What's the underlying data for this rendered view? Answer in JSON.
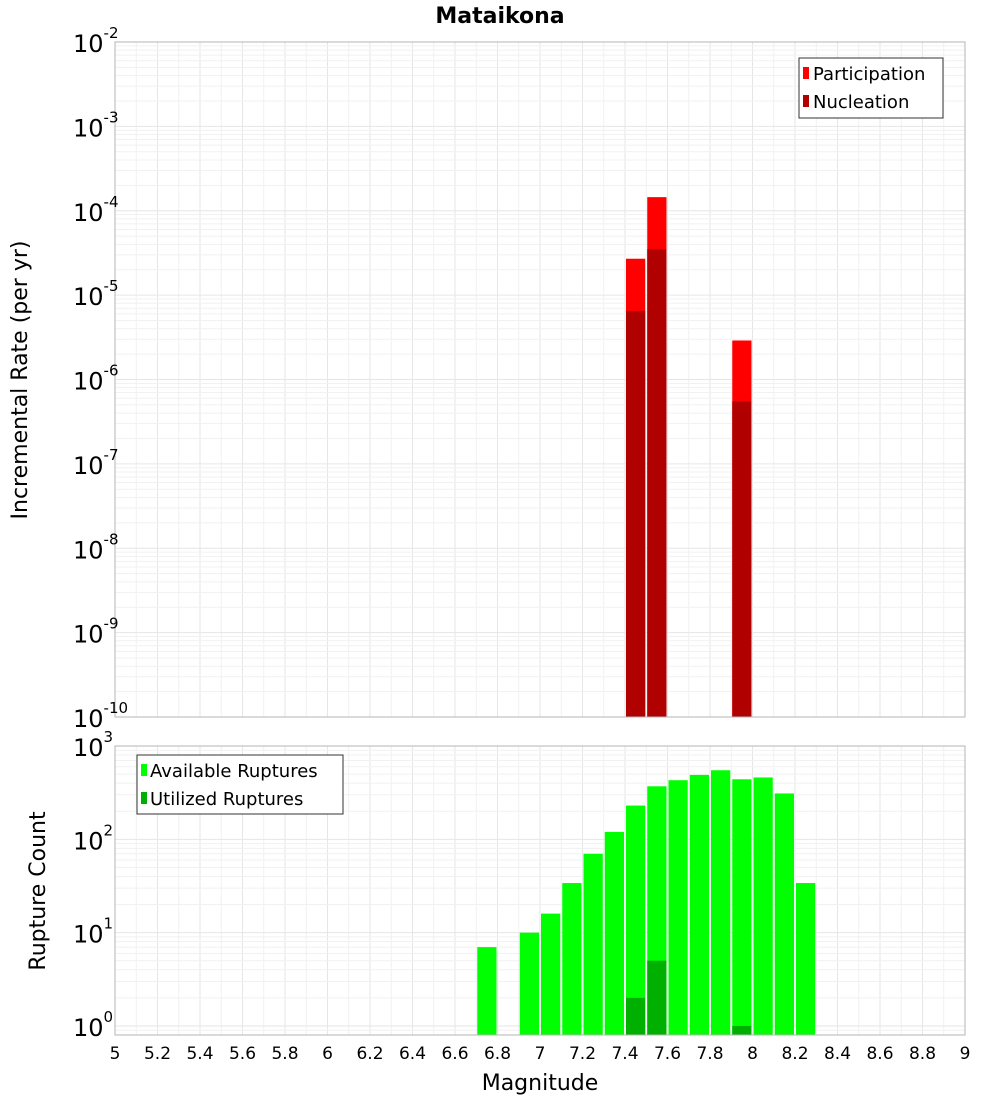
{
  "chart_data": [
    {
      "type": "bar",
      "title": "Mataikona",
      "xlabel": "Magnitude",
      "ylabel": "Incremental Rate (per yr)",
      "yscale": "log",
      "xlim": [
        5,
        9
      ],
      "ylim_exp": [
        -10,
        -2
      ],
      "ytick_labels": [
        {
          "base": "10",
          "exp": "-10"
        },
        {
          "base": "10",
          "exp": "-9"
        },
        {
          "base": "10",
          "exp": "-8"
        },
        {
          "base": "10",
          "exp": "-7"
        },
        {
          "base": "10",
          "exp": "-6"
        },
        {
          "base": "10",
          "exp": "-5"
        },
        {
          "base": "10",
          "exp": "-4"
        },
        {
          "base": "10",
          "exp": "-3"
        },
        {
          "base": "10",
          "exp": "-2"
        }
      ],
      "bin_width": 0.1,
      "legend": {
        "position": "top-right",
        "entries": [
          "Participation",
          "Nucleation"
        ]
      },
      "series": [
        {
          "name": "Participation",
          "color": "#ff0000",
          "x": [
            7.45,
            7.55,
            7.95
          ],
          "values": [
            2.7e-05,
            0.000145,
            2.9e-06
          ]
        },
        {
          "name": "Nucleation",
          "color": "#b00000",
          "x": [
            7.45,
            7.55,
            7.95
          ],
          "values": [
            6.5e-06,
            3.5e-05,
            5.5e-07
          ]
        }
      ]
    },
    {
      "type": "bar",
      "title": "",
      "xlabel": "Magnitude",
      "ylabel": "Rupture Count",
      "yscale": "log",
      "xlim": [
        5,
        9
      ],
      "ylim": [
        0.8,
        1000
      ],
      "ytick_labels": [
        {
          "base": "10",
          "exp": "0",
          "value": 1
        },
        {
          "base": "10",
          "exp": "1",
          "value": 10
        },
        {
          "base": "10",
          "exp": "2",
          "value": 100
        },
        {
          "base": "10",
          "exp": "3",
          "value": 1000
        }
      ],
      "xticks": [
        "5",
        "5.2",
        "5.4",
        "5.6",
        "5.8",
        "6",
        "6.2",
        "6.4",
        "6.6",
        "6.8",
        "7",
        "7.2",
        "7.4",
        "7.6",
        "7.8",
        "8",
        "8.2",
        "8.4",
        "8.6",
        "8.8",
        "9"
      ],
      "bin_width": 0.1,
      "legend": {
        "position": "top-left",
        "entries": [
          "Available Ruptures",
          "Utilized Ruptures"
        ]
      },
      "series": [
        {
          "name": "Available Ruptures",
          "color": "#00ff00",
          "x": [
            6.75,
            6.95,
            7.05,
            7.15,
            7.25,
            7.35,
            7.45,
            7.55,
            7.65,
            7.75,
            7.85,
            7.95,
            8.05,
            8.15,
            8.25
          ],
          "values": [
            7,
            10,
            16,
            34,
            70,
            120,
            230,
            370,
            430,
            490,
            550,
            440,
            460,
            310,
            34
          ]
        },
        {
          "name": "Utilized Ruptures",
          "color": "#00b000",
          "x": [
            7.45,
            7.55,
            7.95
          ],
          "values": [
            2,
            5,
            1
          ]
        }
      ]
    }
  ]
}
